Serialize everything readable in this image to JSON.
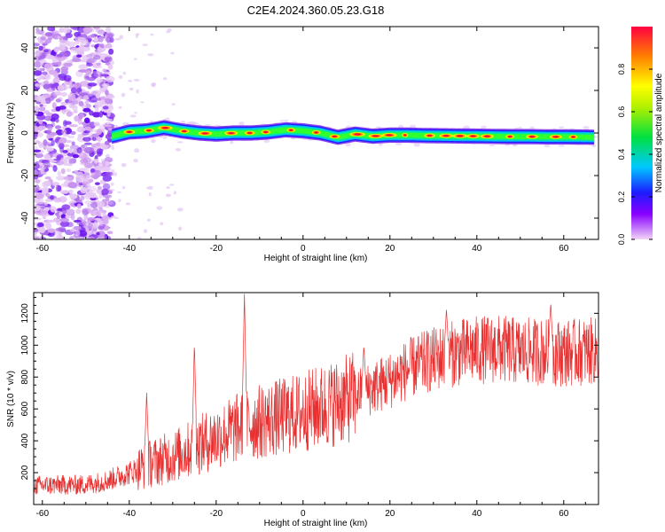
{
  "figure": {
    "title": "C2E4.2024.360.05.23.G18"
  },
  "chart_data": [
    {
      "type": "heatmap",
      "xlabel": "Height of straight line (km)",
      "ylabel": "Frequency (Hz)",
      "xlim": [
        -62,
        68
      ],
      "ylim": [
        -50,
        50
      ],
      "xticks": [
        -60,
        -40,
        -20,
        0,
        20,
        40,
        60
      ],
      "yticks": [
        -40,
        -20,
        0,
        20,
        40
      ],
      "grid": false,
      "ridge_frequency": {
        "x": [
          -44,
          -40,
          -36,
          -32,
          -28,
          -24,
          -20,
          -16,
          -12,
          -8,
          -4,
          0,
          4,
          8,
          12,
          16,
          20,
          24,
          28,
          32,
          36,
          40,
          44,
          48,
          52,
          56,
          60,
          64,
          67
        ],
        "y": [
          -1.5,
          0.5,
          1,
          2.5,
          1,
          0,
          -0.5,
          0,
          0,
          0.5,
          1.5,
          1,
          0,
          -2,
          -0.5,
          -1.5,
          -1,
          -1,
          -1.2,
          -1.3,
          -1.4,
          -1.5,
          -1.6,
          -1.7,
          -1.7,
          -1.8,
          -1.8,
          -1.9,
          -2
        ]
      },
      "colorbar": {
        "label": "Normalized spectral amplitude",
        "range": [
          0,
          1
        ],
        "ticks": [
          "0.0",
          "0.2",
          "0.4",
          "0.6",
          "0.8"
        ]
      }
    },
    {
      "type": "line",
      "xlabel": "Height of straight line (km)",
      "ylabel": "SNR (10 * v/v)",
      "xlim": [
        -62,
        68
      ],
      "ylim": [
        0,
        1330
      ],
      "xticks": [
        -60,
        -40,
        -20,
        0,
        20,
        40,
        60
      ],
      "yticks": [
        200,
        400,
        600,
        800,
        1000,
        1200
      ],
      "grid": false,
      "color": "#e83030",
      "trend": {
        "x": [
          -62,
          -50,
          -45,
          -40,
          -35,
          -30,
          -25,
          -20,
          -15,
          -10,
          -5,
          0,
          5,
          10,
          15,
          20,
          25,
          30,
          35,
          40,
          45,
          50,
          55,
          60,
          65,
          68
        ],
        "y": [
          120,
          125,
          150,
          200,
          260,
          300,
          360,
          420,
          480,
          520,
          550,
          580,
          620,
          660,
          720,
          780,
          860,
          910,
          950,
          970,
          975,
          960,
          960,
          950,
          960,
          960
        ]
      },
      "peaks": [
        {
          "x": -13.5,
          "y": 1330
        },
        {
          "x": -25,
          "y": 1020
        },
        {
          "x": -36,
          "y": 700
        },
        {
          "x": 14,
          "y": 1000
        },
        {
          "x": 33,
          "y": 1230
        },
        {
          "x": 57,
          "y": 1270
        }
      ]
    }
  ]
}
